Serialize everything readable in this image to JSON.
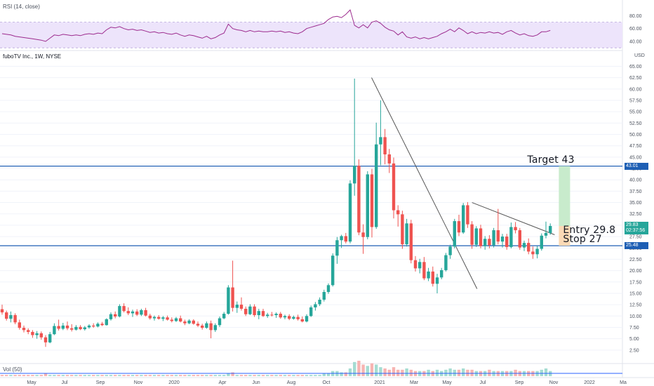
{
  "chart_data": {
    "type": "candlestick",
    "title": "fuboTV Inc., 1W, NYSE",
    "y_unit": "USD",
    "ylim": [
      0,
      66
    ],
    "y_ticks": [
      "65.00",
      "62.50",
      "60.00",
      "57.50",
      "55.00",
      "52.50",
      "50.00",
      "47.50",
      "45.00",
      "42.50",
      "40.00",
      "37.50",
      "35.00",
      "32.50",
      "30.00",
      "27.50",
      "25.00",
      "22.50",
      "20.00",
      "17.50",
      "15.00",
      "12.50",
      "10.00",
      "7.50",
      "5.00",
      "2.50"
    ],
    "x_ticks": [
      "May",
      "Jul",
      "Sep",
      "Nov",
      "2020",
      "Apr",
      "Jun",
      "Aug",
      "Oct",
      "2021",
      "Mar",
      "May",
      "Jul",
      "Sep",
      "Nov",
      "2022",
      "Ma"
    ],
    "horizontal_levels": [
      {
        "label": "43.01",
        "value": 43.01,
        "color": "#1e5fb4"
      },
      {
        "label": "25.48",
        "value": 25.48,
        "color": "#1e5fb4"
      }
    ],
    "current_price": {
      "label": "29.83",
      "sublabel": "02:37:56",
      "value": 29.83,
      "color": "#26a69a"
    },
    "annotations": {
      "target": "Target 43",
      "entry": "Entry 29.8",
      "stop": "Stop 27"
    },
    "candles": [
      {
        "o": 11.5,
        "h": 12.5,
        "l": 10.3,
        "c": 10.8
      },
      {
        "o": 10.8,
        "h": 11.2,
        "l": 9.0,
        "c": 9.4
      },
      {
        "o": 9.4,
        "h": 11.0,
        "l": 8.6,
        "c": 10.2
      },
      {
        "o": 10.2,
        "h": 10.6,
        "l": 8.2,
        "c": 8.6
      },
      {
        "o": 8.6,
        "h": 9.2,
        "l": 7.0,
        "c": 7.4
      },
      {
        "o": 7.4,
        "h": 7.9,
        "l": 6.4,
        "c": 6.9
      },
      {
        "o": 6.9,
        "h": 7.3,
        "l": 6.0,
        "c": 6.5
      },
      {
        "o": 6.5,
        "h": 6.9,
        "l": 5.2,
        "c": 5.8
      },
      {
        "o": 5.8,
        "h": 6.7,
        "l": 5.0,
        "c": 6.2
      },
      {
        "o": 6.2,
        "h": 6.6,
        "l": 4.8,
        "c": 5.3
      },
      {
        "o": 5.3,
        "h": 5.8,
        "l": 3.2,
        "c": 4.2
      },
      {
        "o": 4.2,
        "h": 6.5,
        "l": 4.0,
        "c": 6.0
      },
      {
        "o": 6.0,
        "h": 8.4,
        "l": 5.8,
        "c": 7.8
      },
      {
        "o": 7.8,
        "h": 9.2,
        "l": 6.8,
        "c": 7.2
      },
      {
        "o": 7.2,
        "h": 8.5,
        "l": 6.9,
        "c": 7.9
      },
      {
        "o": 7.9,
        "h": 8.8,
        "l": 6.9,
        "c": 7.3
      },
      {
        "o": 7.3,
        "h": 8.2,
        "l": 6.6,
        "c": 7.0
      },
      {
        "o": 7.0,
        "h": 8.0,
        "l": 6.8,
        "c": 7.6
      },
      {
        "o": 7.6,
        "h": 8.0,
        "l": 6.9,
        "c": 7.1
      },
      {
        "o": 7.1,
        "h": 7.8,
        "l": 6.8,
        "c": 7.5
      },
      {
        "o": 7.5,
        "h": 8.2,
        "l": 7.2,
        "c": 7.9
      },
      {
        "o": 7.9,
        "h": 8.4,
        "l": 7.4,
        "c": 7.7
      },
      {
        "o": 7.7,
        "h": 8.6,
        "l": 7.5,
        "c": 8.3
      },
      {
        "o": 8.3,
        "h": 8.7,
        "l": 7.8,
        "c": 8.0
      },
      {
        "o": 8.0,
        "h": 9.5,
        "l": 7.9,
        "c": 9.3
      },
      {
        "o": 9.3,
        "h": 10.8,
        "l": 9.0,
        "c": 10.4
      },
      {
        "o": 10.4,
        "h": 11.0,
        "l": 9.5,
        "c": 9.9
      },
      {
        "o": 9.9,
        "h": 12.6,
        "l": 9.7,
        "c": 12.2
      },
      {
        "o": 12.2,
        "h": 12.8,
        "l": 10.8,
        "c": 11.1
      },
      {
        "o": 11.1,
        "h": 11.9,
        "l": 10.2,
        "c": 10.6
      },
      {
        "o": 10.6,
        "h": 11.4,
        "l": 9.8,
        "c": 11.0
      },
      {
        "o": 11.0,
        "h": 11.5,
        "l": 10.0,
        "c": 10.3
      },
      {
        "o": 10.3,
        "h": 11.6,
        "l": 10.0,
        "c": 11.3
      },
      {
        "o": 11.3,
        "h": 11.8,
        "l": 9.9,
        "c": 10.1
      },
      {
        "o": 10.1,
        "h": 10.5,
        "l": 9.2,
        "c": 9.5
      },
      {
        "o": 9.5,
        "h": 10.1,
        "l": 9.0,
        "c": 9.8
      },
      {
        "o": 9.8,
        "h": 10.2,
        "l": 9.2,
        "c": 9.4
      },
      {
        "o": 9.4,
        "h": 10.0,
        "l": 8.9,
        "c": 9.7
      },
      {
        "o": 9.7,
        "h": 10.1,
        "l": 9.0,
        "c": 9.2
      },
      {
        "o": 9.2,
        "h": 9.7,
        "l": 8.6,
        "c": 8.9
      },
      {
        "o": 8.9,
        "h": 9.8,
        "l": 8.7,
        "c": 9.5
      },
      {
        "o": 9.5,
        "h": 10.1,
        "l": 8.6,
        "c": 8.8
      },
      {
        "o": 8.8,
        "h": 9.2,
        "l": 8.0,
        "c": 8.4
      },
      {
        "o": 8.4,
        "h": 9.3,
        "l": 8.2,
        "c": 9.0
      },
      {
        "o": 9.0,
        "h": 9.3,
        "l": 8.1,
        "c": 8.3
      },
      {
        "o": 8.3,
        "h": 8.8,
        "l": 7.6,
        "c": 7.9
      },
      {
        "o": 7.9,
        "h": 8.3,
        "l": 7.0,
        "c": 7.4
      },
      {
        "o": 7.4,
        "h": 8.8,
        "l": 7.2,
        "c": 8.4
      },
      {
        "o": 8.4,
        "h": 9.0,
        "l": 5.1,
        "c": 6.9
      },
      {
        "o": 6.9,
        "h": 8.4,
        "l": 6.5,
        "c": 8.0
      },
      {
        "o": 8.0,
        "h": 9.9,
        "l": 7.6,
        "c": 9.5
      },
      {
        "o": 9.5,
        "h": 10.9,
        "l": 9.3,
        "c": 10.5
      },
      {
        "o": 10.5,
        "h": 16.8,
        "l": 10.3,
        "c": 16.3
      },
      {
        "o": 16.3,
        "h": 22.2,
        "l": 11.0,
        "c": 11.8
      },
      {
        "o": 11.8,
        "h": 13.2,
        "l": 10.7,
        "c": 12.5
      },
      {
        "o": 12.5,
        "h": 14.1,
        "l": 11.2,
        "c": 11.6
      },
      {
        "o": 11.6,
        "h": 12.1,
        "l": 10.0,
        "c": 10.4
      },
      {
        "o": 10.4,
        "h": 12.6,
        "l": 10.2,
        "c": 12.1
      },
      {
        "o": 12.1,
        "h": 12.6,
        "l": 9.8,
        "c": 10.2
      },
      {
        "o": 10.2,
        "h": 11.6,
        "l": 9.3,
        "c": 11.1
      },
      {
        "o": 11.1,
        "h": 11.6,
        "l": 9.8,
        "c": 10.0
      },
      {
        "o": 10.0,
        "h": 10.7,
        "l": 9.6,
        "c": 10.3
      },
      {
        "o": 10.3,
        "h": 10.9,
        "l": 9.9,
        "c": 10.2
      },
      {
        "o": 10.2,
        "h": 10.8,
        "l": 9.6,
        "c": 10.5
      },
      {
        "o": 10.5,
        "h": 10.9,
        "l": 9.4,
        "c": 9.7
      },
      {
        "o": 9.7,
        "h": 10.3,
        "l": 9.3,
        "c": 10.0
      },
      {
        "o": 10.0,
        "h": 10.4,
        "l": 9.1,
        "c": 9.4
      },
      {
        "o": 9.4,
        "h": 10.1,
        "l": 9.2,
        "c": 9.8
      },
      {
        "o": 9.8,
        "h": 10.3,
        "l": 9.0,
        "c": 9.3
      },
      {
        "o": 9.3,
        "h": 9.9,
        "l": 8.6,
        "c": 8.8
      },
      {
        "o": 8.8,
        "h": 10.4,
        "l": 8.6,
        "c": 10.0
      },
      {
        "o": 10.0,
        "h": 12.3,
        "l": 9.8,
        "c": 11.9
      },
      {
        "o": 11.9,
        "h": 13.1,
        "l": 11.2,
        "c": 12.6
      },
      {
        "o": 12.6,
        "h": 14.1,
        "l": 12.2,
        "c": 13.6
      },
      {
        "o": 13.6,
        "h": 15.8,
        "l": 13.2,
        "c": 15.3
      },
      {
        "o": 15.3,
        "h": 17.2,
        "l": 14.9,
        "c": 16.8
      },
      {
        "o": 16.8,
        "h": 23.8,
        "l": 16.5,
        "c": 23.3
      },
      {
        "o": 23.3,
        "h": 27.4,
        "l": 21.5,
        "c": 26.7
      },
      {
        "o": 26.7,
        "h": 27.9,
        "l": 25.0,
        "c": 27.6
      },
      {
        "o": 27.6,
        "h": 28.3,
        "l": 26.0,
        "c": 26.4
      },
      {
        "o": 26.4,
        "h": 39.9,
        "l": 26.0,
        "c": 39.2
      },
      {
        "o": 39.2,
        "h": 62.3,
        "l": 36.5,
        "c": 43.1
      },
      {
        "o": 43.1,
        "h": 44.5,
        "l": 27.8,
        "c": 28.4
      },
      {
        "o": 28.4,
        "h": 30.2,
        "l": 23.7,
        "c": 27.4
      },
      {
        "o": 27.4,
        "h": 41.9,
        "l": 26.9,
        "c": 41.2
      },
      {
        "o": 41.2,
        "h": 42.4,
        "l": 27.3,
        "c": 29.6
      },
      {
        "o": 29.6,
        "h": 52.6,
        "l": 29.2,
        "c": 47.8
      },
      {
        "o": 47.8,
        "h": 57.5,
        "l": 43.2,
        "c": 49.4
      },
      {
        "o": 49.4,
        "h": 51.2,
        "l": 43.4,
        "c": 45.6
      },
      {
        "o": 45.6,
        "h": 46.8,
        "l": 41.5,
        "c": 43.6
      },
      {
        "o": 43.6,
        "h": 44.9,
        "l": 31.5,
        "c": 33.3
      },
      {
        "o": 33.3,
        "h": 34.4,
        "l": 29.7,
        "c": 32.4
      },
      {
        "o": 32.4,
        "h": 33.2,
        "l": 24.8,
        "c": 25.8
      },
      {
        "o": 25.8,
        "h": 31.4,
        "l": 25.3,
        "c": 30.4
      },
      {
        "o": 30.4,
        "h": 31.2,
        "l": 21.6,
        "c": 22.3
      },
      {
        "o": 22.3,
        "h": 23.2,
        "l": 19.8,
        "c": 20.5
      },
      {
        "o": 20.5,
        "h": 22.6,
        "l": 19.4,
        "c": 21.9
      },
      {
        "o": 21.9,
        "h": 23.0,
        "l": 17.9,
        "c": 18.3
      },
      {
        "o": 18.3,
        "h": 20.6,
        "l": 17.7,
        "c": 19.8
      },
      {
        "o": 19.8,
        "h": 20.9,
        "l": 16.5,
        "c": 17.1
      },
      {
        "o": 17.1,
        "h": 19.3,
        "l": 15.0,
        "c": 18.5
      },
      {
        "o": 18.5,
        "h": 20.6,
        "l": 18.1,
        "c": 20.1
      },
      {
        "o": 20.1,
        "h": 23.9,
        "l": 19.8,
        "c": 23.4
      },
      {
        "o": 23.4,
        "h": 25.7,
        "l": 22.6,
        "c": 25.3
      },
      {
        "o": 25.3,
        "h": 31.4,
        "l": 24.9,
        "c": 30.9
      },
      {
        "o": 30.9,
        "h": 32.3,
        "l": 27.6,
        "c": 28.4
      },
      {
        "o": 28.4,
        "h": 34.9,
        "l": 28.1,
        "c": 34.4
      },
      {
        "o": 34.4,
        "h": 35.1,
        "l": 29.4,
        "c": 30.2
      },
      {
        "o": 30.2,
        "h": 30.9,
        "l": 24.8,
        "c": 25.7
      },
      {
        "o": 25.7,
        "h": 29.8,
        "l": 25.2,
        "c": 29.3
      },
      {
        "o": 29.3,
        "h": 30.1,
        "l": 24.9,
        "c": 25.4
      },
      {
        "o": 25.4,
        "h": 27.6,
        "l": 24.6,
        "c": 27.0
      },
      {
        "o": 27.0,
        "h": 27.8,
        "l": 24.9,
        "c": 25.6
      },
      {
        "o": 25.6,
        "h": 29.4,
        "l": 25.1,
        "c": 28.9
      },
      {
        "o": 28.9,
        "h": 33.6,
        "l": 25.8,
        "c": 26.4
      },
      {
        "o": 26.4,
        "h": 28.1,
        "l": 25.1,
        "c": 27.5
      },
      {
        "o": 27.5,
        "h": 28.1,
        "l": 24.6,
        "c": 25.2
      },
      {
        "o": 25.2,
        "h": 30.6,
        "l": 24.9,
        "c": 29.6
      },
      {
        "o": 29.6,
        "h": 30.7,
        "l": 28.2,
        "c": 28.9
      },
      {
        "o": 28.9,
        "h": 29.4,
        "l": 24.6,
        "c": 25.1
      },
      {
        "o": 25.1,
        "h": 26.6,
        "l": 24.3,
        "c": 26.1
      },
      {
        "o": 26.1,
        "h": 27.1,
        "l": 23.6,
        "c": 24.2
      },
      {
        "o": 24.2,
        "h": 25.3,
        "l": 22.6,
        "c": 23.6
      },
      {
        "o": 23.6,
        "h": 25.4,
        "l": 22.7,
        "c": 24.8
      },
      {
        "o": 24.8,
        "h": 28.2,
        "l": 24.4,
        "c": 27.7
      },
      {
        "o": 27.7,
        "h": 30.8,
        "l": 27.1,
        "c": 28.3
      },
      {
        "o": 28.3,
        "h": 30.4,
        "l": 27.9,
        "c": 29.83
      }
    ],
    "rsi": {
      "label": "RSI (14, close)",
      "y_ticks": [
        "80.00",
        "60.00",
        "40.00"
      ],
      "ylim": [
        28,
        100
      ],
      "band": [
        30,
        70
      ],
      "values": [
        52,
        51,
        50,
        48,
        47,
        46,
        45,
        44,
        43,
        42,
        40,
        45,
        50,
        49,
        51,
        50,
        49,
        50,
        49,
        51,
        52,
        51,
        53,
        52,
        58,
        62,
        61,
        63,
        60,
        58,
        59,
        57,
        58,
        56,
        54,
        55,
        53,
        54,
        52,
        51,
        53,
        50,
        48,
        50,
        49,
        47,
        45,
        48,
        44,
        46,
        50,
        53,
        67,
        60,
        58,
        57,
        55,
        57,
        55,
        56,
        55,
        55,
        56,
        55,
        56,
        54,
        55,
        53,
        52,
        55,
        60,
        62,
        64,
        66,
        68,
        74,
        78,
        79,
        77,
        82,
        89,
        65,
        61,
        66,
        61,
        70,
        72,
        68,
        62,
        58,
        56,
        50,
        55,
        47,
        45,
        47,
        44,
        46,
        44,
        46,
        48,
        52,
        55,
        59,
        55,
        61,
        57,
        52,
        55,
        52,
        54,
        53,
        55,
        53,
        54,
        51,
        55,
        57,
        53,
        50,
        52,
        49,
        48,
        50,
        55,
        55,
        57
      ]
    },
    "volume": {
      "label": "Vol (50)",
      "values": [
        1,
        1,
        1,
        1,
        1,
        1,
        1,
        1,
        1,
        1,
        2,
        1,
        1,
        1,
        1,
        1,
        1,
        1,
        1,
        1,
        1,
        1,
        1,
        1,
        1,
        1,
        1,
        1,
        1,
        1,
        1,
        1,
        1,
        1,
        1,
        1,
        1,
        1,
        1,
        1,
        1,
        1,
        1,
        1,
        1,
        1,
        1,
        1,
        1,
        1,
        1,
        1,
        2,
        3,
        1,
        1,
        1,
        1,
        1,
        1,
        1,
        1,
        1,
        1,
        1,
        1,
        1,
        1,
        1,
        1,
        1,
        1,
        1,
        1,
        2,
        2,
        4,
        4,
        3,
        3,
        6,
        11,
        12,
        9,
        8,
        10,
        9,
        7,
        6,
        5,
        7,
        5,
        5,
        6,
        5,
        4,
        4,
        4,
        5,
        4,
        5,
        4,
        5,
        6,
        5,
        5,
        6,
        5,
        5,
        4,
        4,
        4,
        5,
        4,
        4,
        4,
        4,
        4,
        5,
        4,
        4,
        4,
        4,
        4,
        5,
        6,
        4
      ]
    }
  }
}
